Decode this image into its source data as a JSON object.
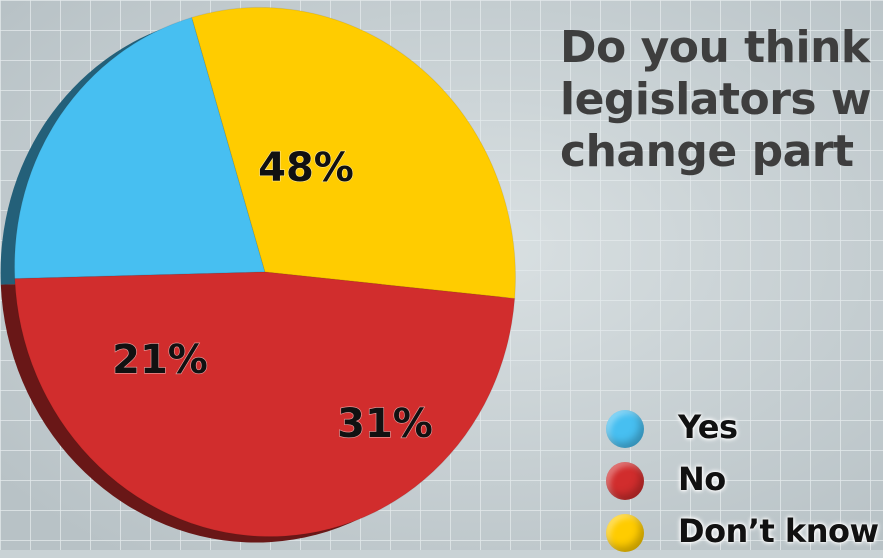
{
  "title_lines": [
    "Do you think",
    "legislators w",
    "change part"
  ],
  "colors": {
    "background": "#c9d2d5",
    "grid": "#e2e8ea",
    "yes": "#47bff1",
    "no": "#d12d2d",
    "dont_know": "#ffcc00"
  },
  "legend": [
    {
      "label": "Yes",
      "color": "#47bff1"
    },
    {
      "label": "No",
      "color": "#d12d2d"
    },
    {
      "label": "Don’t know",
      "color": "#ffcc00"
    }
  ],
  "chart_data": {
    "type": "pie",
    "title": "Do you think legislators w change part",
    "legend_position": "bottom-right",
    "slices": [
      {
        "label": "Yes",
        "value": 21,
        "display": "21%",
        "color": "#47bff1"
      },
      {
        "label": "No",
        "value": 48,
        "display": "48%",
        "color": "#d12d2d"
      },
      {
        "label": "Don’t know",
        "value": 31,
        "display": "31%",
        "color": "#ffcc00"
      }
    ]
  }
}
